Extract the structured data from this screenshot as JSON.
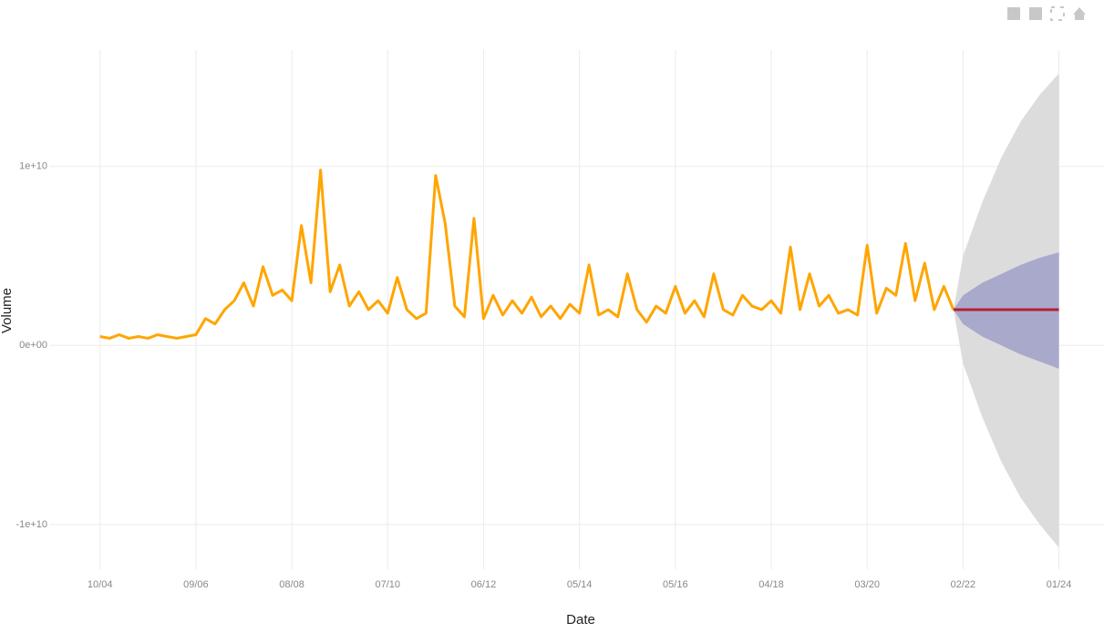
{
  "chart_data": {
    "type": "line",
    "x_label": "Date",
    "y_label": "Volume",
    "xlim": [
      -0.52,
      10.47
    ],
    "ylim": [
      -12500000000,
      16500000000
    ],
    "grid": true,
    "xticks": [
      {
        "value": 0,
        "label": "10/04"
      },
      {
        "value": 1,
        "label": "09/06"
      },
      {
        "value": 2,
        "label": "08/08"
      },
      {
        "value": 3,
        "label": "07/10"
      },
      {
        "value": 4,
        "label": "06/12"
      },
      {
        "value": 5,
        "label": "05/14"
      },
      {
        "value": 6,
        "label": "05/16"
      },
      {
        "value": 7,
        "label": "04/18"
      },
      {
        "value": 8,
        "label": "03/20"
      },
      {
        "value": 9,
        "label": "02/22"
      },
      {
        "value": 10,
        "label": "01/24"
      }
    ],
    "yticks": [
      {
        "value": -10000000000,
        "label": "-1e+10"
      },
      {
        "value": 0,
        "label": "0e+00"
      },
      {
        "value": 10000000000,
        "label": "1e+10"
      }
    ],
    "bands": [
      {
        "color": "#dcdcdc",
        "x": [
          8.9,
          9.0,
          9.2,
          9.4,
          9.6,
          9.8,
          10.0
        ],
        "lower": [
          2000000000.0,
          -1000000000.0,
          -4000000000.0,
          -6500000000.0,
          -8500000000.0,
          -10000000000.0,
          -11300000000.0
        ],
        "upper": [
          2000000000.0,
          5000000000.0,
          8000000000.0,
          10500000000.0,
          12500000000.0,
          14000000000.0,
          15200000000.0
        ]
      },
      {
        "color": "#a9a9cc",
        "x": [
          8.9,
          9.0,
          9.2,
          9.4,
          9.6,
          9.8,
          10.0
        ],
        "lower": [
          2000000000.0,
          1200000000.0,
          500000000.0,
          0,
          -500000000.0,
          -900000000.0,
          -1300000000.0
        ],
        "upper": [
          2000000000.0,
          2800000000.0,
          3500000000.0,
          4000000000.0,
          4500000000.0,
          4900000000.0,
          5200000000.0
        ]
      }
    ],
    "series": [
      {
        "color": "#ffa500",
        "x": [
          0,
          0.1,
          0.2,
          0.3,
          0.4,
          0.5,
          0.6,
          0.7,
          0.8,
          0.9,
          1,
          1.1,
          1.2,
          1.3,
          1.4,
          1.5,
          1.6,
          1.7,
          1.8,
          1.9,
          2,
          2.1,
          2.2,
          2.3,
          2.4,
          2.5,
          2.6,
          2.7,
          2.8,
          2.9,
          3,
          3.1,
          3.2,
          3.3,
          3.4,
          3.5,
          3.6,
          3.7,
          3.8,
          3.9,
          4,
          4.1,
          4.2,
          4.3,
          4.4,
          4.5,
          4.6,
          4.7,
          4.8,
          4.9,
          5,
          5.1,
          5.2,
          5.3,
          5.4,
          5.5,
          5.6,
          5.7,
          5.8,
          5.9,
          6,
          6.1,
          6.2,
          6.3,
          6.4,
          6.5,
          6.6,
          6.7,
          6.8,
          6.9,
          7,
          7.1,
          7.2,
          7.3,
          7.4,
          7.5,
          7.6,
          7.7,
          7.8,
          7.9,
          8,
          8.1,
          8.2,
          8.3,
          8.4,
          8.5,
          8.6,
          8.7,
          8.8,
          8.9
        ],
        "values": [
          500000000.0,
          400000000.0,
          600000000.0,
          400000000.0,
          500000000.0,
          400000000.0,
          600000000.0,
          500000000.0,
          400000000.0,
          500000000.0,
          600000000.0,
          1500000000.0,
          1200000000.0,
          2000000000.0,
          2500000000.0,
          3500000000.0,
          2200000000.0,
          4400000000.0,
          2800000000.0,
          3100000000.0,
          2500000000.0,
          6700000000.0,
          3500000000.0,
          9800000000.0,
          3000000000.0,
          4500000000.0,
          2200000000.0,
          3000000000.0,
          2000000000.0,
          2500000000.0,
          1800000000.0,
          3800000000.0,
          2000000000.0,
          1500000000.0,
          1800000000.0,
          9500000000.0,
          6800000000.0,
          2200000000.0,
          1600000000.0,
          7100000000.0,
          1500000000.0,
          2800000000.0,
          1700000000.0,
          2500000000.0,
          1800000000.0,
          2700000000.0,
          1600000000.0,
          2200000000.0,
          1500000000.0,
          2300000000.0,
          1800000000.0,
          4500000000.0,
          1700000000.0,
          2000000000.0,
          1600000000.0,
          4000000000.0,
          2000000000.0,
          1300000000.0,
          2200000000.0,
          1800000000.0,
          3300000000.0,
          1800000000.0,
          2500000000.0,
          1600000000.0,
          4000000000.0,
          2000000000.0,
          1700000000.0,
          2800000000.0,
          2200000000.0,
          2000000000.0,
          2500000000.0,
          1800000000.0,
          5500000000.0,
          2000000000.0,
          4000000000.0,
          2200000000.0,
          2800000000.0,
          1800000000.0,
          2000000000.0,
          1700000000.0,
          5600000000.0,
          1800000000.0,
          3200000000.0,
          2800000000.0,
          5700000000.0,
          2500000000.0,
          4600000000.0,
          2000000000.0,
          3300000000.0,
          2000000000.0
        ]
      },
      {
        "color": "#b22234",
        "x": [
          8.9,
          10.0
        ],
        "values": [
          2000000000.0,
          2000000000.0
        ]
      }
    ]
  }
}
